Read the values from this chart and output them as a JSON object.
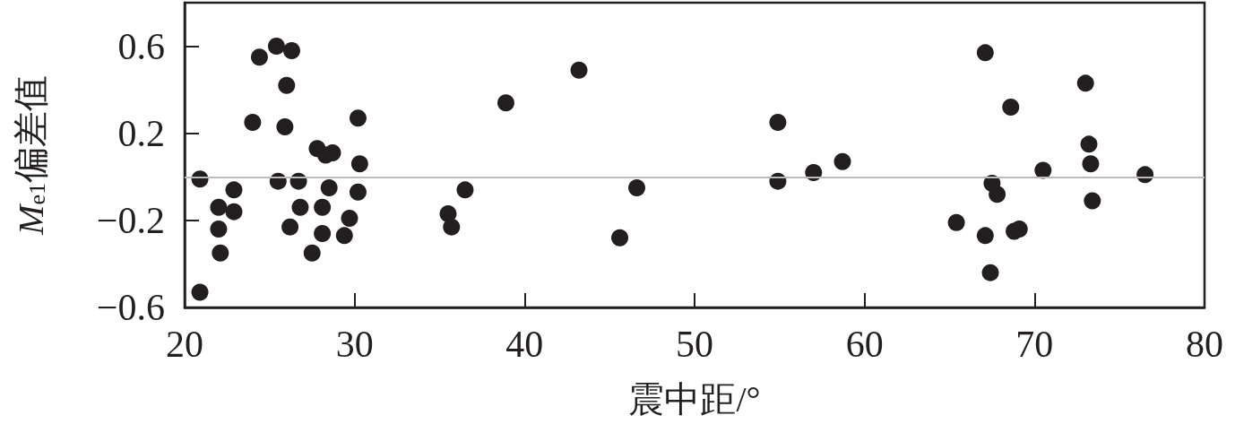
{
  "chart_data": {
    "type": "scatter",
    "xlabel": "震中距/°",
    "ylabel": "M$_{e1}$偏差值",
    "x": [
      20.9,
      20.9,
      22.0,
      22.0,
      22.1,
      22.9,
      22.9,
      24.0,
      24.4,
      25.4,
      25.5,
      25.9,
      26.0,
      26.2,
      26.3,
      26.7,
      26.8,
      27.5,
      27.8,
      28.3,
      28.7,
      28.1,
      28.1,
      28.5,
      29.4,
      29.7,
      30.2,
      30.2,
      30.3,
      35.5,
      35.7,
      36.5,
      38.9,
      43.2,
      45.6,
      46.6,
      54.9,
      54.9,
      57.0,
      58.7,
      65.4,
      67.1,
      67.1,
      67.4,
      67.5,
      67.8,
      68.6,
      68.8,
      69.1,
      70.5,
      73.0,
      73.2,
      73.3,
      73.4,
      76.5
    ],
    "values": [
      -0.01,
      -0.53,
      -0.14,
      -0.24,
      -0.35,
      -0.06,
      -0.16,
      0.25,
      0.55,
      0.6,
      -0.02,
      0.23,
      0.42,
      -0.23,
      0.58,
      -0.02,
      -0.14,
      -0.35,
      0.13,
      0.1,
      0.11,
      -0.14,
      -0.26,
      -0.05,
      -0.27,
      -0.19,
      0.27,
      -0.07,
      0.06,
      -0.17,
      -0.23,
      -0.06,
      0.34,
      0.49,
      -0.28,
      -0.05,
      0.25,
      -0.02,
      0.02,
      0.07,
      -0.21,
      0.57,
      -0.27,
      -0.44,
      -0.03,
      -0.08,
      0.32,
      -0.25,
      -0.24,
      0.03,
      0.43,
      0.15,
      0.06,
      -0.11,
      0.01
    ],
    "color": "#231f20",
    "marker": "circle",
    "xlim": [
      20,
      80
    ],
    "xticks": [
      20,
      30,
      40,
      50,
      60,
      70,
      80
    ],
    "ylim": [
      -0.6,
      0.8
    ],
    "yticks": [
      {
        "value": -0.6,
        "label": "−0.6"
      },
      {
        "value": -0.2,
        "label": "−0.2"
      },
      0.2,
      0.6
    ],
    "grid": false,
    "ref_lines": [
      {
        "axis": "y",
        "value": 0,
        "color": "#bbbbbb"
      }
    ]
  }
}
